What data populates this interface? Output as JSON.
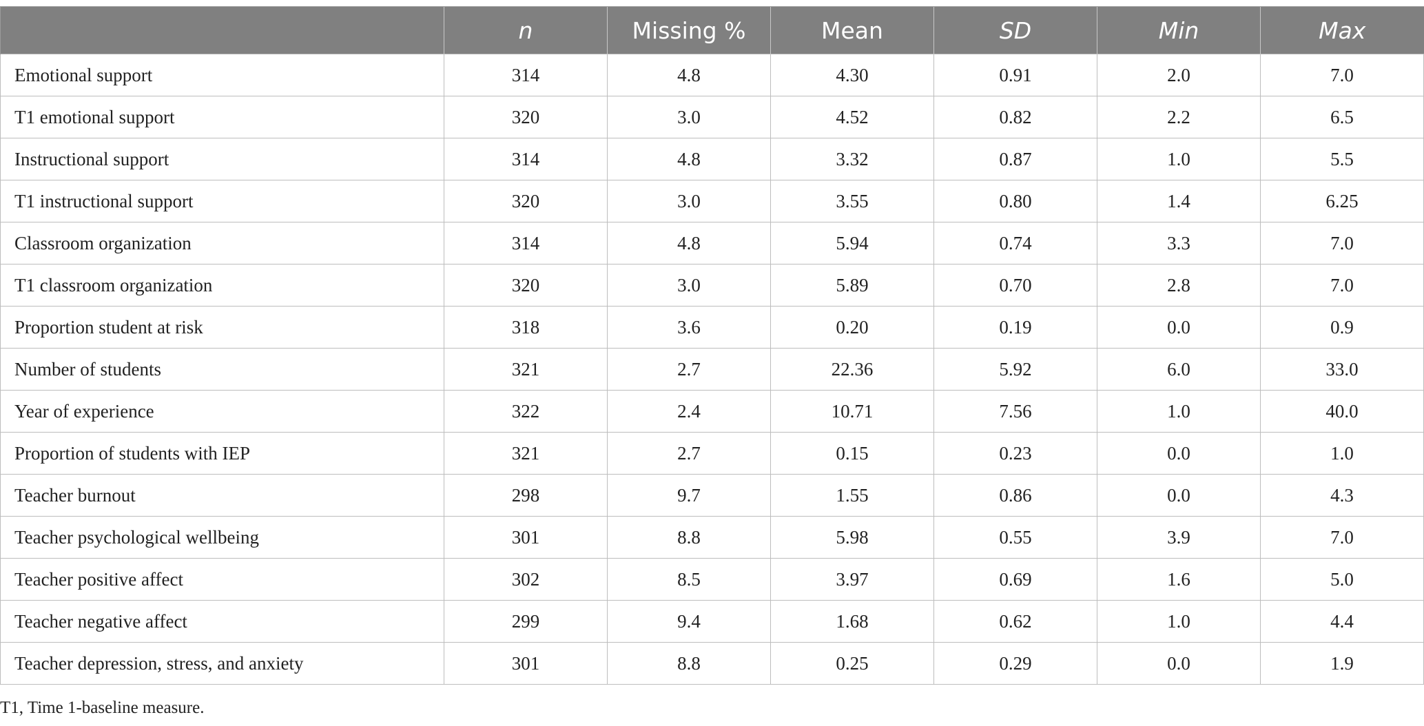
{
  "table": {
    "headers": [
      {
        "text": "",
        "italic": false
      },
      {
        "text": "n",
        "italic": true
      },
      {
        "text": "Missing %",
        "italic": false
      },
      {
        "text": "Mean",
        "italic": false
      },
      {
        "text": "SD",
        "italic": true
      },
      {
        "text": "Min",
        "italic": true
      },
      {
        "text": "Max",
        "italic": true
      }
    ],
    "rows": [
      [
        "Emotional support",
        "314",
        "4.8",
        "4.30",
        "0.91",
        "2.0",
        "7.0"
      ],
      [
        "T1 emotional support",
        "320",
        "3.0",
        "4.52",
        "0.82",
        "2.2",
        "6.5"
      ],
      [
        "Instructional support",
        "314",
        "4.8",
        "3.32",
        "0.87",
        "1.0",
        "5.5"
      ],
      [
        "T1 instructional support",
        "320",
        "3.0",
        "3.55",
        "0.80",
        "1.4",
        "6.25"
      ],
      [
        "Classroom organization",
        "314",
        "4.8",
        "5.94",
        "0.74",
        "3.3",
        "7.0"
      ],
      [
        "T1 classroom organization",
        "320",
        "3.0",
        "5.89",
        "0.70",
        "2.8",
        "7.0"
      ],
      [
        "Proportion student at risk",
        "318",
        "3.6",
        "0.20",
        "0.19",
        "0.0",
        "0.9"
      ],
      [
        "Number of students",
        "321",
        "2.7",
        "22.36",
        "5.92",
        "6.0",
        "33.0"
      ],
      [
        "Year of experience",
        "322",
        "2.4",
        "10.71",
        "7.56",
        "1.0",
        "40.0"
      ],
      [
        "Proportion of students with IEP",
        "321",
        "2.7",
        "0.15",
        "0.23",
        "0.0",
        "1.0"
      ],
      [
        "Teacher burnout",
        "298",
        "9.7",
        "1.55",
        "0.86",
        "0.0",
        "4.3"
      ],
      [
        "Teacher psychological wellbeing",
        "301",
        "8.8",
        "5.98",
        "0.55",
        "3.9",
        "7.0"
      ],
      [
        "Teacher positive affect",
        "302",
        "8.5",
        "3.97",
        "0.69",
        "1.6",
        "5.0"
      ],
      [
        "Teacher negative affect",
        "299",
        "9.4",
        "1.68",
        "0.62",
        "1.0",
        "4.4"
      ],
      [
        "Teacher depression, stress, and anxiety",
        "301",
        "8.8",
        "0.25",
        "0.29",
        "0.0",
        "1.9"
      ]
    ]
  },
  "footnote": "T1, Time 1-baseline measure."
}
